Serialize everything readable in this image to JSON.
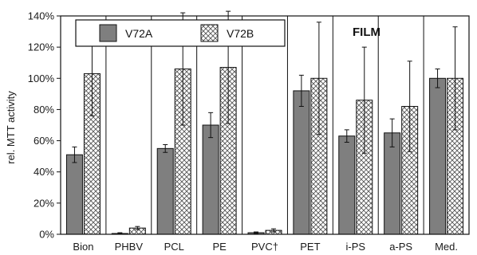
{
  "chart_data": {
    "type": "bar",
    "ylabel": "rel. MTT activity",
    "ylim": [
      0,
      140
    ],
    "yticks": [
      "0%",
      "20%",
      "40%",
      "60%",
      "80%",
      "100%",
      "120%",
      "140%"
    ],
    "categories": [
      "Bion",
      "PHBV",
      "PCL",
      "PE",
      "PVC†",
      "PET",
      "i-PS",
      "a-PS",
      "Med."
    ],
    "series": [
      {
        "name": "V72A",
        "values": [
          51,
          0.5,
          55,
          70,
          1,
          92,
          63,
          65,
          100
        ],
        "errors": [
          5,
          0.5,
          2.5,
          8,
          0.5,
          10,
          4,
          9,
          6
        ],
        "color": "#7f7f7f",
        "pattern": "solid"
      },
      {
        "name": "V72B",
        "values": [
          103,
          4,
          106,
          107,
          2.5,
          100,
          86,
          82,
          100
        ],
        "errors": [
          27,
          1,
          36,
          36,
          1,
          36,
          34,
          29,
          33
        ],
        "color": "#ffffff",
        "pattern": "crosshatch"
      }
    ],
    "annotations": [
      "FILM"
    ],
    "legend_position": "top-left"
  },
  "colors": {
    "axis": "#111111",
    "grid": "#222222",
    "dark_bar": "#7f7f7f",
    "hatch": "#555555"
  }
}
